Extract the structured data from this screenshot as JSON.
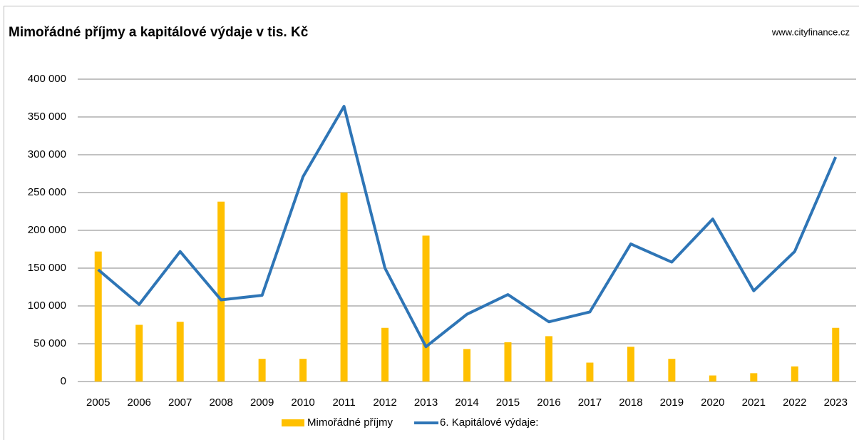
{
  "chart_data": {
    "type": "combo",
    "title": "Mimořádné příjmy a kapitálové výdaje v tis. Kč",
    "source": "www.cityfinance.cz",
    "categories": [
      "2005",
      "2006",
      "2007",
      "2008",
      "2009",
      "2010",
      "2011",
      "2012",
      "2013",
      "2014",
      "2015",
      "2016",
      "2017",
      "2018",
      "2019",
      "2020",
      "2021",
      "2022",
      "2023"
    ],
    "series": [
      {
        "name": "Mimořádné příjmy",
        "type": "bar",
        "color": "#FFC000",
        "values": [
          172000,
          75000,
          79000,
          238000,
          30000,
          30000,
          250000,
          71000,
          193000,
          43000,
          52000,
          60000,
          25000,
          46000,
          30000,
          8000,
          11000,
          20000,
          71000
        ]
      },
      {
        "name": "6. Kapitálové výdaje:",
        "type": "line",
        "color": "#2E75B6",
        "values": [
          148000,
          102000,
          172000,
          108000,
          114000,
          271000,
          364000,
          150000,
          46000,
          89000,
          115000,
          79000,
          92000,
          182000,
          158000,
          215000,
          120000,
          172000,
          297000
        ]
      }
    ],
    "ylim": [
      0,
      400000
    ],
    "yticks": [
      0,
      {
        "value": 50000,
        "label": "50 000"
      },
      {
        "value": 100000,
        "label": "100 000"
      },
      {
        "value": 150000,
        "label": "150 000"
      },
      {
        "value": 200000,
        "label": "200 000"
      },
      {
        "value": 250000,
        "label": "250 000"
      },
      {
        "value": 300000,
        "label": "300 000"
      },
      {
        "value": 350000,
        "label": "350 000"
      },
      {
        "value": 400000,
        "label": "400 000"
      }
    ],
    "grid": true,
    "legend": "bottom"
  }
}
